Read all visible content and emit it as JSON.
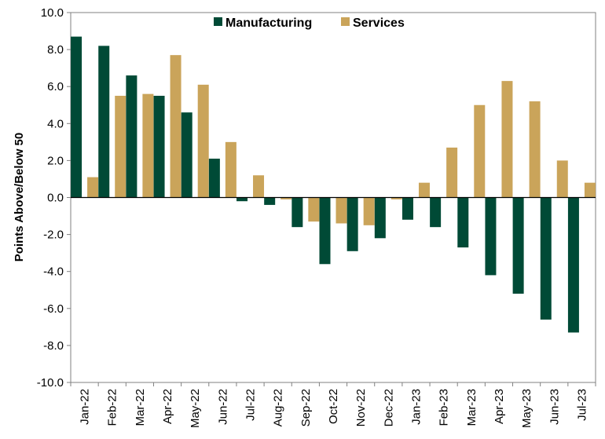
{
  "chart_data": {
    "type": "bar",
    "title": "",
    "xlabel": "",
    "ylabel": "Points Above/Below 50",
    "ylim": [
      -10,
      10
    ],
    "yticks": [
      "10.0",
      "8.0",
      "6.0",
      "4.0",
      "2.0",
      "0.0",
      "-2.0",
      "-4.0",
      "-6.0",
      "-8.0",
      "-10.0"
    ],
    "ytick_values": [
      10,
      8,
      6,
      4,
      2,
      0,
      -2,
      -4,
      -6,
      -8,
      -10
    ],
    "categories": [
      "Jan-22",
      "Feb-22",
      "Mar-22",
      "Apr-22",
      "May-22",
      "Jun-22",
      "Jul-22",
      "Aug-22",
      "Sep-22",
      "Oct-22",
      "Nov-22",
      "Dec-22",
      "Jan-23",
      "Feb-23",
      "Mar-23",
      "Apr-23",
      "May-23",
      "Jun-23",
      "Jul-23"
    ],
    "series": [
      {
        "name": "Manufacturing",
        "color": "#004a36",
        "values": [
          8.7,
          8.2,
          6.6,
          5.5,
          4.6,
          2.1,
          -0.2,
          -0.4,
          -1.6,
          -3.6,
          -2.9,
          -2.2,
          -1.2,
          -1.6,
          -2.7,
          -4.2,
          -5.2,
          -6.6,
          -7.3
        ]
      },
      {
        "name": "Services",
        "color": "#caa45a",
        "values": [
          1.1,
          5.5,
          5.6,
          7.7,
          6.1,
          3.0,
          1.2,
          -0.1,
          -1.3,
          -1.4,
          -1.5,
          -0.1,
          0.8,
          2.7,
          5.0,
          6.3,
          5.2,
          2.0,
          0.8
        ]
      }
    ],
    "grid": false,
    "legend_position": "top-center"
  }
}
